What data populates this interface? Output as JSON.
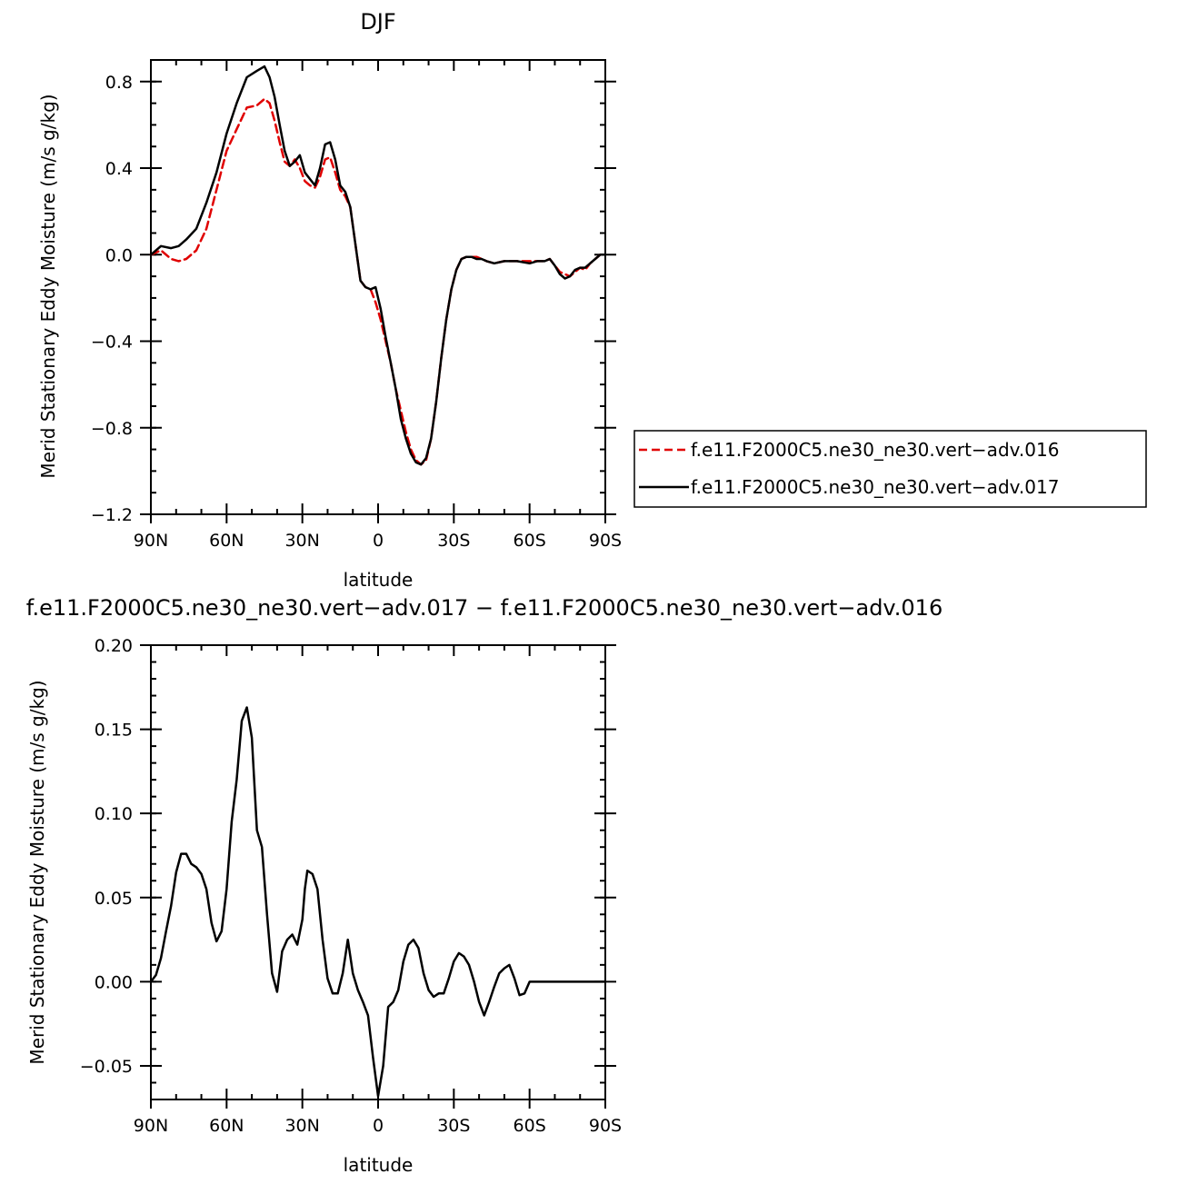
{
  "chart_data": [
    {
      "type": "line",
      "title": "DJF",
      "xlabel": "latitude",
      "ylabel": "Merid Stationary Eddy Moisture (m/s g/kg)",
      "xlim": [
        90,
        -90
      ],
      "ylim": [
        -1.2,
        0.9
      ],
      "x_ticks": [
        90,
        60,
        30,
        0,
        -30,
        -60,
        -90
      ],
      "x_tick_labels": [
        "90N",
        "60N",
        "30N",
        "0",
        "30S",
        "60S",
        "90S"
      ],
      "y_ticks": [
        0.8,
        0.4,
        0.0,
        -0.4,
        -0.8,
        -1.2
      ],
      "y_tick_labels": [
        "0.8",
        "0.4",
        "0.0",
        "−0.4",
        "−0.8",
        "−1.2"
      ],
      "legend_placement": "right",
      "series": [
        {
          "name": "f.e11.F2000C5.ne30_ne30.vert−adv.016",
          "color": "#e00000",
          "dash": "dashed",
          "x": [
            90,
            86,
            82,
            79,
            76,
            72,
            68,
            64,
            60,
            56,
            52,
            48,
            45,
            43,
            41,
            39,
            37,
            35,
            33,
            31,
            29,
            27,
            25,
            23,
            21,
            19,
            17,
            15,
            13,
            11,
            9,
            7,
            5,
            3,
            1,
            -1,
            -3,
            -5,
            -7,
            -9,
            -11,
            -13,
            -15,
            -17,
            -19,
            -21,
            -23,
            -25,
            -27,
            -29,
            -31,
            -33,
            -35,
            -37,
            -39,
            -41,
            -43,
            -46,
            -50,
            -55,
            -60,
            -63,
            -66,
            -68,
            -70,
            -72,
            -74,
            -76,
            -78,
            -80,
            -82,
            -84,
            -86,
            -88,
            -90
          ],
          "y": [
            0.0,
            0.02,
            -0.02,
            -0.03,
            -0.02,
            0.02,
            0.12,
            0.3,
            0.48,
            0.58,
            0.68,
            0.69,
            0.72,
            0.7,
            0.62,
            0.52,
            0.43,
            0.41,
            0.44,
            0.4,
            0.34,
            0.32,
            0.31,
            0.36,
            0.44,
            0.45,
            0.38,
            0.3,
            0.27,
            0.22,
            0.05,
            -0.12,
            -0.15,
            -0.16,
            -0.22,
            -0.3,
            -0.4,
            -0.5,
            -0.62,
            -0.72,
            -0.82,
            -0.9,
            -0.95,
            -0.97,
            -0.95,
            -0.85,
            -0.68,
            -0.48,
            -0.3,
            -0.16,
            -0.07,
            -0.02,
            -0.01,
            -0.01,
            -0.01,
            -0.02,
            -0.03,
            -0.04,
            -0.03,
            -0.03,
            -0.03,
            -0.03,
            -0.03,
            -0.02,
            -0.05,
            -0.08,
            -0.09,
            -0.1,
            -0.08,
            -0.06,
            -0.07,
            -0.04,
            -0.02,
            0.0,
            0.0
          ]
        },
        {
          "name": "f.e11.F2000C5.ne30_ne30.vert−adv.017",
          "color": "#000000",
          "dash": "solid",
          "x": [
            90,
            86,
            82,
            79,
            76,
            72,
            68,
            64,
            60,
            56,
            52,
            48,
            45,
            43,
            41,
            39,
            37,
            35,
            33,
            31,
            29,
            27,
            25,
            23,
            21,
            19,
            17,
            15,
            13,
            11,
            9,
            7,
            5,
            3,
            1,
            -1,
            -3,
            -5,
            -7,
            -9,
            -11,
            -13,
            -15,
            -17,
            -19,
            -21,
            -23,
            -25,
            -27,
            -29,
            -31,
            -33,
            -35,
            -37,
            -39,
            -41,
            -43,
            -46,
            -50,
            -55,
            -60,
            -63,
            -66,
            -68,
            -70,
            -72,
            -74,
            -76,
            -78,
            -80,
            -82,
            -84,
            -86,
            -88,
            -90
          ],
          "y": [
            0.0,
            0.04,
            0.03,
            0.04,
            0.07,
            0.12,
            0.24,
            0.38,
            0.56,
            0.7,
            0.82,
            0.85,
            0.87,
            0.82,
            0.73,
            0.6,
            0.48,
            0.41,
            0.43,
            0.46,
            0.38,
            0.35,
            0.32,
            0.4,
            0.51,
            0.52,
            0.44,
            0.32,
            0.29,
            0.22,
            0.05,
            -0.12,
            -0.15,
            -0.16,
            -0.15,
            -0.25,
            -0.38,
            -0.5,
            -0.62,
            -0.76,
            -0.85,
            -0.92,
            -0.96,
            -0.97,
            -0.94,
            -0.85,
            -0.68,
            -0.48,
            -0.3,
            -0.16,
            -0.07,
            -0.02,
            -0.01,
            -0.01,
            -0.02,
            -0.02,
            -0.03,
            -0.04,
            -0.03,
            -0.03,
            -0.04,
            -0.03,
            -0.03,
            -0.02,
            -0.05,
            -0.09,
            -0.11,
            -0.1,
            -0.07,
            -0.06,
            -0.06,
            -0.04,
            -0.02,
            0.0,
            0.0
          ]
        }
      ]
    },
    {
      "type": "line",
      "title": "f.e11.F2000C5.ne30_ne30.vert−adv.017 − f.e11.F2000C5.ne30_ne30.vert−adv.016",
      "xlabel": "latitude",
      "ylabel": "Merid Stationary Eddy Moisture (m/s g/kg)",
      "xlim": [
        90,
        -90
      ],
      "ylim": [
        -0.07,
        0.2
      ],
      "x_ticks": [
        90,
        60,
        30,
        0,
        -30,
        -60,
        -90
      ],
      "x_tick_labels": [
        "90N",
        "60N",
        "30N",
        "0",
        "30S",
        "60S",
        "90S"
      ],
      "y_ticks": [
        0.2,
        0.15,
        0.1,
        0.05,
        0.0,
        -0.05
      ],
      "y_tick_labels": [
        "0.20",
        "0.15",
        "0.10",
        "0.05",
        "0.00",
        "−0.05"
      ],
      "series": [
        {
          "color": "#000000",
          "dash": "solid",
          "x": [
            90,
            88,
            86,
            84,
            82,
            80,
            78,
            76,
            74,
            72,
            70,
            68,
            66,
            64,
            62,
            60,
            58,
            56,
            54,
            52,
            50,
            48,
            46,
            44,
            42,
            40,
            38,
            36,
            34,
            32,
            30,
            29,
            28,
            26,
            24,
            22,
            20,
            18,
            16,
            14,
            12,
            10,
            8,
            6,
            4,
            2,
            0,
            -2,
            -4,
            -6,
            -8,
            -10,
            -12,
            -14,
            -16,
            -18,
            -20,
            -22,
            -24,
            -26,
            -28,
            -30,
            -32,
            -34,
            -36,
            -38,
            -40,
            -42,
            -44,
            -46,
            -48,
            -50,
            -52,
            -54,
            -56,
            -58,
            -60,
            -62,
            -64,
            -66,
            -68,
            -70,
            -72,
            -74,
            -76,
            -78,
            -80,
            -82,
            -84,
            -86,
            -88,
            -90
          ],
          "y": [
            0.0,
            0.004,
            0.014,
            0.03,
            0.045,
            0.065,
            0.076,
            0.076,
            0.07,
            0.068,
            0.064,
            0.055,
            0.035,
            0.024,
            0.03,
            0.055,
            0.095,
            0.12,
            0.155,
            0.163,
            0.145,
            0.09,
            0.08,
            0.04,
            0.005,
            -0.006,
            0.018,
            0.025,
            0.028,
            0.022,
            0.037,
            0.055,
            0.066,
            0.064,
            0.055,
            0.025,
            0.002,
            -0.007,
            -0.007,
            0.005,
            0.025,
            0.005,
            -0.005,
            -0.012,
            -0.02,
            -0.045,
            -0.068,
            -0.05,
            -0.015,
            -0.012,
            -0.005,
            0.012,
            0.022,
            0.025,
            0.02,
            0.005,
            -0.005,
            -0.009,
            -0.007,
            -0.007,
            0.002,
            0.012,
            0.017,
            0.015,
            0.01,
            0.0,
            -0.012,
            -0.02,
            -0.012,
            -0.003,
            0.005,
            0.008,
            0.01,
            0.002,
            -0.008,
            -0.007,
            0.0,
            0.0,
            0.0,
            0.0,
            0.0,
            0.0,
            0.0,
            0.0,
            0.0,
            0.0,
            0.0,
            0.0,
            0.0,
            0.0,
            0.0,
            0.0
          ]
        }
      ]
    }
  ]
}
